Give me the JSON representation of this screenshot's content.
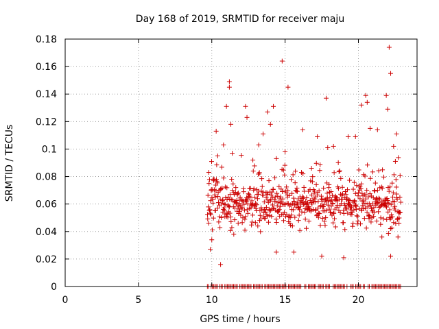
{
  "chart_data": {
    "type": "scatter",
    "title": "Day 168 of 2019, SRMTID for receiver maju",
    "xlabel": "GPS time / hours",
    "ylabel": "SRMTID / TECUs",
    "xlim": [
      0,
      24
    ],
    "ylim": [
      0,
      0.18
    ],
    "xticks": [
      0,
      5,
      10,
      15,
      20
    ],
    "xtick_labels": [
      "0",
      "5",
      "10",
      "15",
      "20"
    ],
    "yticks": [
      0,
      0.02,
      0.04,
      0.06,
      0.08,
      0.1,
      0.12,
      0.14,
      0.16,
      0.18
    ],
    "ytick_labels": [
      "0",
      "0.02",
      "0.04",
      "0.06",
      "0.08",
      "0.1",
      "0.12",
      "0.14",
      "0.16",
      "0.18"
    ],
    "grid": true,
    "marker": "+",
    "color": "#cc0000",
    "series": [
      {
        "name": "SRMTID",
        "x_range": [
          9.7,
          22.9
        ],
        "y_min": 0.016,
        "y_max": 0.174,
        "y_typical": 0.06,
        "points": [
          [
            9.8,
            0.083
          ],
          [
            9.9,
            0.027
          ],
          [
            10.0,
            0.034
          ],
          [
            10.1,
            0.078
          ],
          [
            10.3,
            0.113
          ],
          [
            10.4,
            0.095
          ],
          [
            10.6,
            0.016
          ],
          [
            10.8,
            0.103
          ],
          [
            11.0,
            0.131
          ],
          [
            11.2,
            0.149
          ],
          [
            11.2,
            0.145
          ],
          [
            11.3,
            0.118
          ],
          [
            11.5,
            0.038
          ],
          [
            11.8,
            0.046
          ],
          [
            12.3,
            0.131
          ],
          [
            12.4,
            0.123
          ],
          [
            12.8,
            0.092
          ],
          [
            13.2,
            0.103
          ],
          [
            13.5,
            0.111
          ],
          [
            13.8,
            0.127
          ],
          [
            14.0,
            0.118
          ],
          [
            14.2,
            0.131
          ],
          [
            14.4,
            0.025
          ],
          [
            14.8,
            0.164
          ],
          [
            15.0,
            0.098
          ],
          [
            15.2,
            0.145
          ],
          [
            15.6,
            0.025
          ],
          [
            16.2,
            0.114
          ],
          [
            16.8,
            0.086
          ],
          [
            17.2,
            0.109
          ],
          [
            17.5,
            0.022
          ],
          [
            17.8,
            0.137
          ],
          [
            18.3,
            0.102
          ],
          [
            19.0,
            0.021
          ],
          [
            19.3,
            0.109
          ],
          [
            19.8,
            0.109
          ],
          [
            20.2,
            0.132
          ],
          [
            20.5,
            0.139
          ],
          [
            20.6,
            0.134
          ],
          [
            20.8,
            0.115
          ],
          [
            21.3,
            0.114
          ],
          [
            21.6,
            0.036
          ],
          [
            21.9,
            0.139
          ],
          [
            22.0,
            0.129
          ],
          [
            22.1,
            0.174
          ],
          [
            22.2,
            0.155
          ],
          [
            22.2,
            0.022
          ],
          [
            22.4,
            0.102
          ],
          [
            22.6,
            0.111
          ],
          [
            22.7,
            0.036
          ]
        ],
        "zero_points_x_range": [
          9.7,
          22.9
        ]
      }
    ]
  }
}
